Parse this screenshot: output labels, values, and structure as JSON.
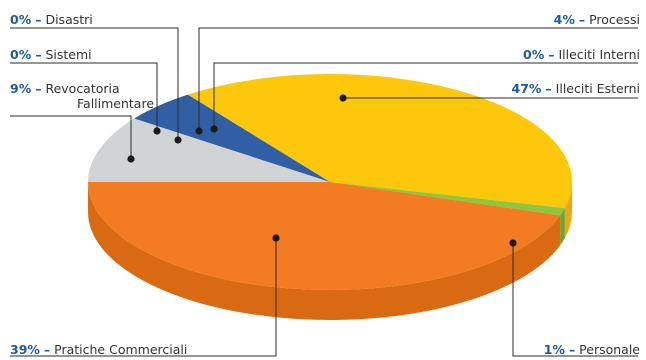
{
  "chart_data": {
    "type": "pie",
    "title": "",
    "three_d": true,
    "slices": [
      {
        "label": "Illeciti Esterni",
        "percent": "47%",
        "value": 47,
        "color": "#fdc70c",
        "side_color": "#efa614"
      },
      {
        "label": "Personale",
        "percent": "1%",
        "value": 1,
        "color": "#8dc63f",
        "side_color": "#6ea52f"
      },
      {
        "label": "Pratiche Commerciali",
        "percent": "39%",
        "value": 39,
        "color": "#f37b21",
        "side_color": "#d96a12"
      },
      {
        "label": "Revocatoria Fallimentare",
        "label_lines": [
          "Revocatoria",
          "Fallimentare"
        ],
        "percent": "9%",
        "value": 9,
        "color": "#d2d3d5",
        "side_color": "#b5b6b8"
      },
      {
        "label": "Sistemi",
        "percent": "0%",
        "value": 0,
        "color": "#315fa3",
        "side_color": "#25498a"
      },
      {
        "label": "Disastri",
        "percent": "0%",
        "value": 0,
        "color": "#315fa3",
        "side_color": "#25498a"
      },
      {
        "label": "Processi",
        "percent": "4%",
        "value": 4,
        "color": "#315fa3",
        "side_color": "#25498a"
      },
      {
        "label": "Illeciti Interni",
        "percent": "0%",
        "value": 0,
        "color": "#315fa3",
        "side_color": "#25498a"
      }
    ],
    "legend_style": "callout labels with leader lines",
    "label_separator": "–"
  }
}
